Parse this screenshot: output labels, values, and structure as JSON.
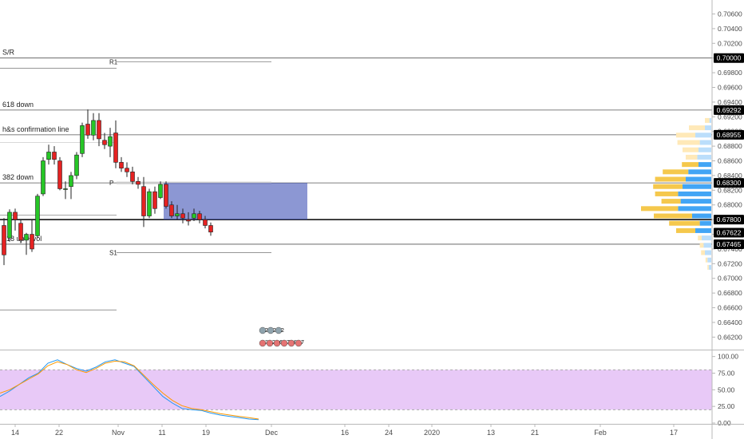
{
  "chart_data": [
    {
      "type": "candlestick",
      "ylim": [
        0.6603,
        0.7079
      ],
      "price_ticks": [
        "0.70600",
        "0.70400",
        "0.70200",
        "0.70000",
        "0.69800",
        "0.69600",
        "0.69400",
        "0.69200",
        "0.69000",
        "0.68800",
        "0.68600",
        "0.68400",
        "0.68200",
        "0.68000",
        "0.67800",
        "0.67600",
        "0.67400",
        "0.67200",
        "0.67000",
        "0.66800",
        "0.66600",
        "0.66400",
        "0.66200"
      ],
      "x_ticks": [
        "14",
        "22",
        "Nov",
        "11",
        "19",
        "Dec",
        "16",
        "24",
        "2020",
        "13",
        "21",
        "Feb",
        "17"
      ],
      "price_tags": [
        {
          "value": "0.70000",
          "color": "#000000"
        },
        {
          "value": "0.69292",
          "color": "#000000"
        },
        {
          "value": "0.68955",
          "color": "#000000"
        },
        {
          "value": "0.68300",
          "color": "#000000"
        },
        {
          "value": "0.67800",
          "color": "#000000"
        },
        {
          "value": "0.67622",
          "color": "#000000"
        },
        {
          "value": "0.67465",
          "color": "#000000"
        }
      ],
      "levels": [
        {
          "label": "S/R",
          "price": 0.7
        },
        {
          "label": "618 down",
          "price": 0.69292
        },
        {
          "label": "h&s confirmation line",
          "price": 0.68955
        },
        {
          "label": "382 down",
          "price": 0.683
        },
        {
          "label": "618 up + vol",
          "price": 0.67465
        },
        {
          "label": "",
          "price": 0.678
        }
      ],
      "pivots": [
        {
          "label": "R1",
          "price": 0.6995
        },
        {
          "label": "P",
          "price": 0.683
        },
        {
          "label": "S1",
          "price": 0.6735
        },
        {
          "label": "",
          "price": 0.6986
        },
        {
          "label": "",
          "price": 0.6885
        },
        {
          "label": "",
          "price": 0.6786
        },
        {
          "label": "",
          "price": 0.6657
        }
      ],
      "candles": [
        {
          "o": 0.6772,
          "h": 0.6782,
          "l": 0.6718,
          "c": 0.6732
        },
        {
          "o": 0.6755,
          "h": 0.6794,
          "l": 0.675,
          "c": 0.679
        },
        {
          "o": 0.679,
          "h": 0.6795,
          "l": 0.6765,
          "c": 0.678
        },
        {
          "o": 0.6775,
          "h": 0.678,
          "l": 0.6748,
          "c": 0.6752
        },
        {
          "o": 0.6752,
          "h": 0.6762,
          "l": 0.6732,
          "c": 0.676
        },
        {
          "o": 0.676,
          "h": 0.678,
          "l": 0.6736,
          "c": 0.674
        },
        {
          "o": 0.6758,
          "h": 0.6815,
          "l": 0.6755,
          "c": 0.6812
        },
        {
          "o": 0.6815,
          "h": 0.6865,
          "l": 0.6812,
          "c": 0.686
        },
        {
          "o": 0.6862,
          "h": 0.6882,
          "l": 0.6855,
          "c": 0.6872
        },
        {
          "o": 0.6872,
          "h": 0.688,
          "l": 0.6855,
          "c": 0.6862
        },
        {
          "o": 0.686,
          "h": 0.6865,
          "l": 0.682,
          "c": 0.6822
        },
        {
          "o": 0.6822,
          "h": 0.6832,
          "l": 0.6808,
          "c": 0.6822
        },
        {
          "o": 0.6825,
          "h": 0.6845,
          "l": 0.6808,
          "c": 0.684
        },
        {
          "o": 0.684,
          "h": 0.6872,
          "l": 0.6835,
          "c": 0.6868
        },
        {
          "o": 0.687,
          "h": 0.6912,
          "l": 0.6865,
          "c": 0.6908
        },
        {
          "o": 0.691,
          "h": 0.693,
          "l": 0.689,
          "c": 0.6895
        },
        {
          "o": 0.6895,
          "h": 0.6925,
          "l": 0.6888,
          "c": 0.6915
        },
        {
          "o": 0.6915,
          "h": 0.6925,
          "l": 0.688,
          "c": 0.689
        },
        {
          "o": 0.6888,
          "h": 0.6898,
          "l": 0.6876,
          "c": 0.6882
        },
        {
          "o": 0.688,
          "h": 0.6905,
          "l": 0.6865,
          "c": 0.6893
        },
        {
          "o": 0.6898,
          "h": 0.6915,
          "l": 0.685,
          "c": 0.6858
        },
        {
          "o": 0.6858,
          "h": 0.6865,
          "l": 0.6845,
          "c": 0.685
        },
        {
          "o": 0.685,
          "h": 0.6858,
          "l": 0.6838,
          "c": 0.6845
        },
        {
          "o": 0.6845,
          "h": 0.6852,
          "l": 0.6828,
          "c": 0.6832
        },
        {
          "o": 0.6832,
          "h": 0.6838,
          "l": 0.6822,
          "c": 0.6828
        },
        {
          "o": 0.6825,
          "h": 0.6838,
          "l": 0.677,
          "c": 0.6785
        },
        {
          "o": 0.6785,
          "h": 0.6822,
          "l": 0.6782,
          "c": 0.6818
        },
        {
          "o": 0.6818,
          "h": 0.6825,
          "l": 0.6788,
          "c": 0.6795
        },
        {
          "o": 0.681,
          "h": 0.6832,
          "l": 0.6808,
          "c": 0.6828
        },
        {
          "o": 0.6828,
          "h": 0.6832,
          "l": 0.6795,
          "c": 0.6798
        },
        {
          "o": 0.68,
          "h": 0.6805,
          "l": 0.6782,
          "c": 0.6785
        },
        {
          "o": 0.6785,
          "h": 0.68,
          "l": 0.678,
          "c": 0.6788
        },
        {
          "o": 0.6788,
          "h": 0.6795,
          "l": 0.6775,
          "c": 0.6782
        },
        {
          "o": 0.678,
          "h": 0.679,
          "l": 0.6772,
          "c": 0.6778
        },
        {
          "o": 0.6782,
          "h": 0.6795,
          "l": 0.6778,
          "c": 0.6788
        },
        {
          "o": 0.6788,
          "h": 0.6792,
          "l": 0.6775,
          "c": 0.678
        },
        {
          "o": 0.678,
          "h": 0.6785,
          "l": 0.6768,
          "c": 0.6772
        },
        {
          "o": 0.6772,
          "h": 0.6776,
          "l": 0.6758,
          "c": 0.6763
        }
      ],
      "resistance_box": {
        "from_candle": 29,
        "to_date_index": 48,
        "top": 0.683,
        "bottom": 0.678
      },
      "volume_profile": [
        {
          "price": 0.6915,
          "up": 0.007,
          "down": 0.003
        },
        {
          "price": 0.6905,
          "up": 0.025,
          "down": 0.01
        },
        {
          "price": 0.6895,
          "up": 0.03,
          "down": 0.025
        },
        {
          "price": 0.6885,
          "up": 0.035,
          "down": 0.018
        },
        {
          "price": 0.6875,
          "up": 0.025,
          "down": 0.02
        },
        {
          "price": 0.6865,
          "up": 0.018,
          "down": 0.022
        },
        {
          "price": 0.6855,
          "up": 0.026,
          "down": 0.02
        },
        {
          "price": 0.6845,
          "up": 0.04,
          "down": 0.036
        },
        {
          "price": 0.6835,
          "up": 0.048,
          "down": 0.04
        },
        {
          "price": 0.6825,
          "up": 0.046,
          "down": 0.045
        },
        {
          "price": 0.6815,
          "up": 0.036,
          "down": 0.052
        },
        {
          "price": 0.6805,
          "up": 0.03,
          "down": 0.048
        },
        {
          "price": 0.6795,
          "up": 0.058,
          "down": 0.052
        },
        {
          "price": 0.6785,
          "up": 0.06,
          "down": 0.03
        },
        {
          "price": 0.6775,
          "up": 0.048,
          "down": 0.018
        },
        {
          "price": 0.6765,
          "up": 0.03,
          "down": 0.025
        },
        {
          "price": 0.6755,
          "up": 0.006,
          "down": 0.015
        },
        {
          "price": 0.6745,
          "up": 0.006,
          "down": 0.012
        },
        {
          "price": 0.6735,
          "up": 0.006,
          "down": 0.01
        },
        {
          "price": 0.6725,
          "up": 0.003,
          "down": 0.006
        },
        {
          "price": 0.6715,
          "up": 0.002,
          "down": 0.004
        }
      ],
      "event_badges": {
        "row1": [
          "2",
          "2",
          "2"
        ],
        "row2": [
          "3",
          "2",
          "6",
          "7",
          "8",
          "7"
        ]
      }
    },
    {
      "type": "line",
      "title": "",
      "ylim": [
        0,
        108
      ],
      "y_ticks": [
        "100.00",
        "75.00",
        "50.00",
        "25.00",
        "0.00"
      ],
      "band": [
        20,
        80
      ],
      "series": [
        {
          "color": "#2196f3",
          "values": [
            40,
            48,
            58,
            68,
            75,
            90,
            95,
            88,
            82,
            78,
            84,
            92,
            95,
            90,
            85,
            70,
            55,
            40,
            30,
            22,
            20,
            19,
            15,
            12,
            10,
            8,
            6,
            5
          ]
        },
        {
          "color": "#ff9800",
          "values": [
            45,
            50,
            58,
            66,
            74,
            86,
            92,
            88,
            80,
            76,
            82,
            90,
            93,
            92,
            86,
            72,
            58,
            45,
            34,
            26,
            22,
            20,
            17,
            14,
            12,
            10,
            8,
            6
          ]
        }
      ]
    }
  ]
}
